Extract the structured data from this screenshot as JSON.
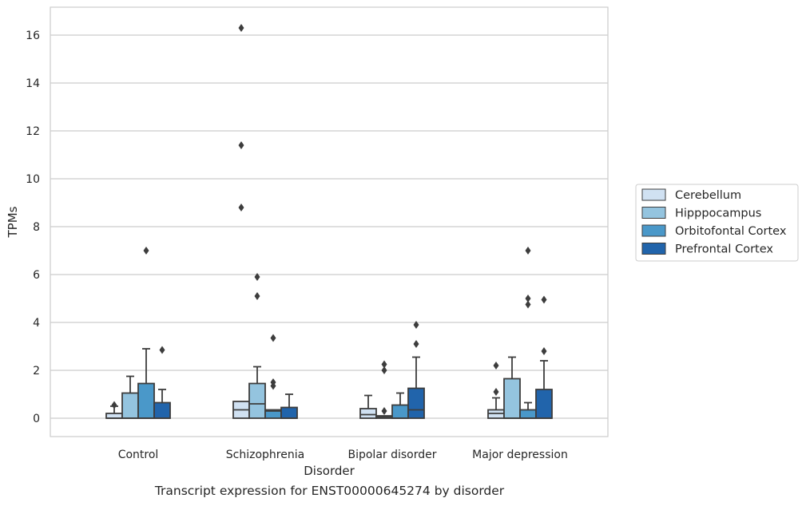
{
  "caption": "Transcript expression for ENST00000645274 by disorder",
  "chart_data": {
    "type": "boxplot",
    "xlabel": "Disorder",
    "ylabel": "TPMs",
    "ylim": [
      -0.8,
      17.2
    ],
    "yticks": [
      0,
      2,
      4,
      6,
      8,
      10,
      12,
      14,
      16
    ],
    "grid": "horizontal",
    "legend_position": "right",
    "categories": [
      "Control",
      "Schizophrenia",
      "Bipolar disorder",
      "Major depression"
    ],
    "series": [
      {
        "name": "Cerebellum",
        "color": "#d0e1f2",
        "boxes": [
          {
            "q1": 0.0,
            "median": 0.0,
            "q3": 0.2,
            "whisker_low": 0.0,
            "whisker_high": 0.5,
            "outliers": [
              0.55
            ]
          },
          {
            "q1": 0.0,
            "median": 0.35,
            "q3": 0.7,
            "whisker_low": 0.0,
            "whisker_high": 0.7,
            "outliers": [
              16.3,
              11.4,
              8.8
            ]
          },
          {
            "q1": 0.0,
            "median": 0.15,
            "q3": 0.4,
            "whisker_low": 0.0,
            "whisker_high": 0.95,
            "outliers": []
          },
          {
            "q1": 0.0,
            "median": 0.2,
            "q3": 0.35,
            "whisker_low": 0.0,
            "whisker_high": 0.85,
            "outliers": [
              2.2,
              1.1
            ]
          }
        ]
      },
      {
        "name": "Hipppocampus",
        "color": "#94c4df",
        "boxes": [
          {
            "q1": 0.0,
            "median": 0.0,
            "q3": 1.05,
            "whisker_low": 0.0,
            "whisker_high": 1.75,
            "outliers": []
          },
          {
            "q1": 0.0,
            "median": 0.6,
            "q3": 1.45,
            "whisker_low": 0.0,
            "whisker_high": 2.15,
            "outliers": [
              5.9,
              5.1
            ]
          },
          {
            "q1": 0.0,
            "median": 0.05,
            "q3": 0.1,
            "whisker_low": 0.0,
            "whisker_high": 0.1,
            "outliers": [
              2.25,
              2.0,
              0.3
            ]
          },
          {
            "q1": 0.0,
            "median": 0.0,
            "q3": 1.65,
            "whisker_low": 0.0,
            "whisker_high": 2.55,
            "outliers": []
          }
        ]
      },
      {
        "name": "Orbitofontal Cortex",
        "color": "#4a98c9",
        "boxes": [
          {
            "q1": 0.0,
            "median": 0.0,
            "q3": 1.45,
            "whisker_low": 0.0,
            "whisker_high": 2.9,
            "outliers": [
              7.0
            ]
          },
          {
            "q1": 0.0,
            "median": 0.3,
            "q3": 0.35,
            "whisker_low": 0.0,
            "whisker_high": 0.35,
            "outliers": [
              3.35,
              1.5,
              1.35
            ]
          },
          {
            "q1": 0.0,
            "median": 0.0,
            "q3": 0.55,
            "whisker_low": 0.0,
            "whisker_high": 1.05,
            "outliers": []
          },
          {
            "q1": 0.0,
            "median": 0.0,
            "q3": 0.35,
            "whisker_low": 0.0,
            "whisker_high": 0.65,
            "outliers": [
              7.0,
              5.0,
              4.75
            ]
          }
        ]
      },
      {
        "name": "Prefrontal Cortex",
        "color": "#2164ab",
        "boxes": [
          {
            "q1": 0.0,
            "median": 0.0,
            "q3": 0.65,
            "whisker_low": 0.0,
            "whisker_high": 1.2,
            "outliers": [
              2.85
            ]
          },
          {
            "q1": 0.0,
            "median": 0.0,
            "q3": 0.45,
            "whisker_low": 0.0,
            "whisker_high": 1.0,
            "outliers": []
          },
          {
            "q1": 0.0,
            "median": 0.35,
            "q3": 1.25,
            "whisker_low": 0.0,
            "whisker_high": 2.55,
            "outliers": [
              3.9,
              3.1
            ]
          },
          {
            "q1": 0.0,
            "median": 0.0,
            "q3": 1.2,
            "whisker_low": 0.0,
            "whisker_high": 2.4,
            "outliers": [
              4.95,
              2.8
            ]
          }
        ]
      }
    ]
  }
}
